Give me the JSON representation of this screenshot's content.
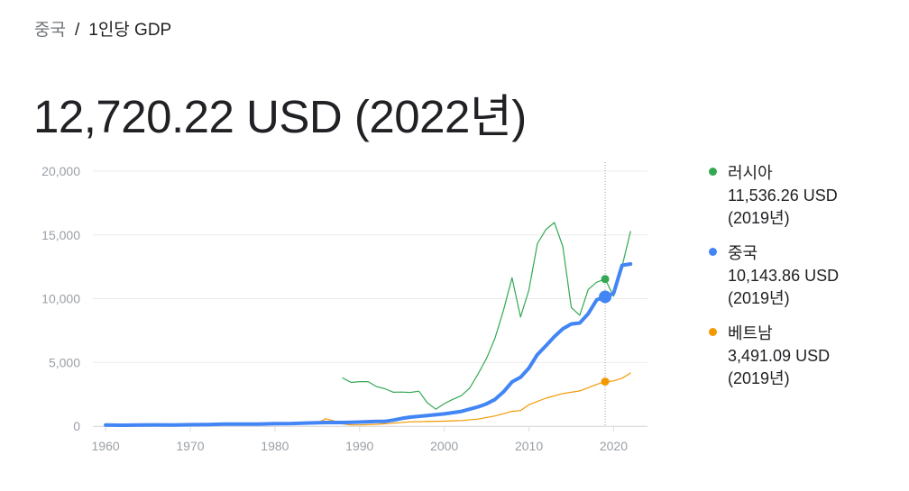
{
  "breadcrumb": {
    "root": "중국",
    "separator": "/",
    "current": "1인당 GDP"
  },
  "headline": "12,720.22 USD (2022년)",
  "legend": [
    {
      "name": "러시아",
      "value": "11,536.26 USD",
      "year": "(2019년)",
      "color": "#34a853"
    },
    {
      "name": "중국",
      "value": "10,143.86 USD",
      "year": "(2019년)",
      "color": "#4285f4"
    },
    {
      "name": "베트남",
      "value": "3,491.09 USD",
      "year": "(2019년)",
      "color": "#f29900"
    }
  ],
  "chart_data": {
    "type": "line",
    "xlim": [
      1958.5,
      2024
    ],
    "ylim": [
      0,
      20000
    ],
    "x_ticks": [
      1960,
      1970,
      1980,
      1990,
      2000,
      2010,
      2020
    ],
    "x_tick_labels": [
      "1960",
      "1970",
      "1980",
      "1990",
      "2000",
      "2010",
      "2020"
    ],
    "y_ticks": [
      0,
      5000,
      10000,
      15000,
      20000
    ],
    "y_tick_labels": [
      "0",
      "5,000",
      "10,000",
      "15,000",
      "20,000"
    ],
    "grid": true,
    "highlight_x": 2019,
    "series": [
      {
        "name": "러시아",
        "color": "#34a853",
        "width": 1.2,
        "x": [
          1988,
          1989,
          1990,
          1991,
          1992,
          1993,
          1994,
          1995,
          1996,
          1997,
          1998,
          1999,
          2000,
          2001,
          2002,
          2003,
          2004,
          2005,
          2006,
          2007,
          2008,
          2009,
          2010,
          2011,
          2012,
          2013,
          2014,
          2015,
          2016,
          2017,
          2018,
          2019,
          2020,
          2021,
          2022
        ],
        "y": [
          3780,
          3430,
          3490,
          3490,
          3100,
          2930,
          2660,
          2670,
          2640,
          2740,
          1830,
          1330,
          1770,
          2100,
          2380,
          2980,
          4100,
          5320,
          6920,
          9100,
          11640,
          8560,
          10670,
          14310,
          15420,
          15970,
          14100,
          9310,
          8700,
          10720,
          11290,
          11536,
          10190,
          12520,
          15270
        ]
      },
      {
        "name": "中国",
        "color": "#4285f4",
        "width": 4,
        "x": [
          1960,
          1962,
          1964,
          1966,
          1968,
          1970,
          1972,
          1974,
          1976,
          1978,
          1980,
          1982,
          1984,
          1986,
          1988,
          1990,
          1992,
          1993,
          1994,
          1995,
          1996,
          1998,
          2000,
          2002,
          2004,
          2005,
          2006,
          2007,
          2008,
          2009,
          2010,
          2011,
          2012,
          2013,
          2014,
          2015,
          2016,
          2017,
          2018,
          2019,
          2020,
          2021,
          2022
        ],
        "y": [
          90,
          70,
          85,
          100,
          90,
          110,
          130,
          160,
          160,
          155,
          195,
          205,
          250,
          280,
          280,
          318,
          366,
          377,
          473,
          609,
          709,
          829,
          959,
          1149,
          1509,
          1753,
          2099,
          2694,
          3468,
          3832,
          4550,
          5614,
          6300,
          7020,
          7636,
          8016,
          8094,
          8817,
          9905,
          10144,
          10409,
          12618,
          12720
        ]
      },
      {
        "name": "베트남",
        "color": "#f29900",
        "width": 1.2,
        "x": [
          1985,
          1986,
          1987,
          1988,
          1989,
          1990,
          1992,
          1994,
          1996,
          1998,
          2000,
          2002,
          2004,
          2006,
          2008,
          2009,
          2010,
          2012,
          2014,
          2016,
          2018,
          2019,
          2020,
          2021,
          2022
        ],
        "y": [
          230,
          580,
          400,
          180,
          95,
          95,
          140,
          230,
          340,
          360,
          390,
          440,
          550,
          800,
          1160,
          1220,
          1680,
          2190,
          2560,
          2760,
          3270,
          3491,
          3550,
          3760,
          4160
        ]
      }
    ],
    "highlight_points": [
      {
        "series": "러시아",
        "x": 2019,
        "y": 11536,
        "color": "#34a853",
        "r": 4.5
      },
      {
        "series": "中国",
        "x": 2019,
        "y": 10144,
        "color": "#4285f4",
        "r": 7
      },
      {
        "series": "베트남",
        "x": 2019,
        "y": 3491,
        "color": "#f29900",
        "r": 4.5
      }
    ]
  }
}
